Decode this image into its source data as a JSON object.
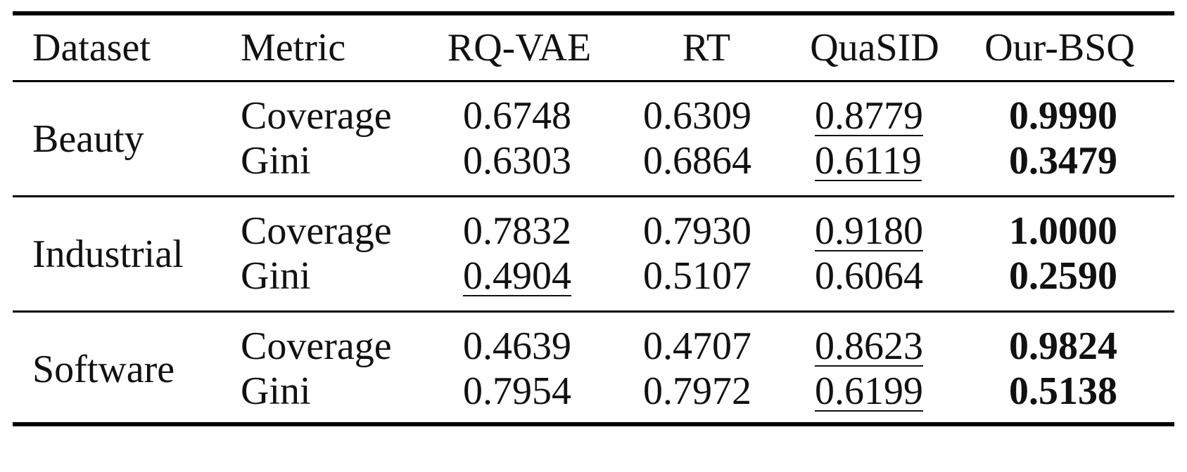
{
  "headers": [
    "Dataset",
    "Metric",
    "RQ-VAE",
    "RT",
    "QuaSID",
    "Our-BSQ"
  ],
  "groups": [
    {
      "dataset": "Beauty",
      "rows": [
        {
          "metric": "Coverage",
          "rqvae": "0.6748",
          "rt": "0.6309",
          "quasid": "0.8779",
          "ourbsq": "0.9990"
        },
        {
          "metric": "Gini",
          "rqvae": "0.6303",
          "rt": "0.6864",
          "quasid": "0.6119",
          "ourbsq": "0.3479"
        }
      ]
    },
    {
      "dataset": "Industrial",
      "rows": [
        {
          "metric": "Coverage",
          "rqvae": "0.7832",
          "rt": "0.7930",
          "quasid": "0.9180",
          "ourbsq": "1.0000"
        },
        {
          "metric": "Gini",
          "rqvae": "0.4904",
          "rt": "0.5107",
          "quasid": "0.6064",
          "ourbsq": "0.2590"
        }
      ]
    },
    {
      "dataset": "Software",
      "rows": [
        {
          "metric": "Coverage",
          "rqvae": "0.4639",
          "rt": "0.4707",
          "quasid": "0.8623",
          "ourbsq": "0.9824"
        },
        {
          "metric": "Gini",
          "rqvae": "0.7954",
          "rt": "0.7972",
          "quasid": "0.6199",
          "ourbsq": "0.5138"
        }
      ]
    }
  ]
}
